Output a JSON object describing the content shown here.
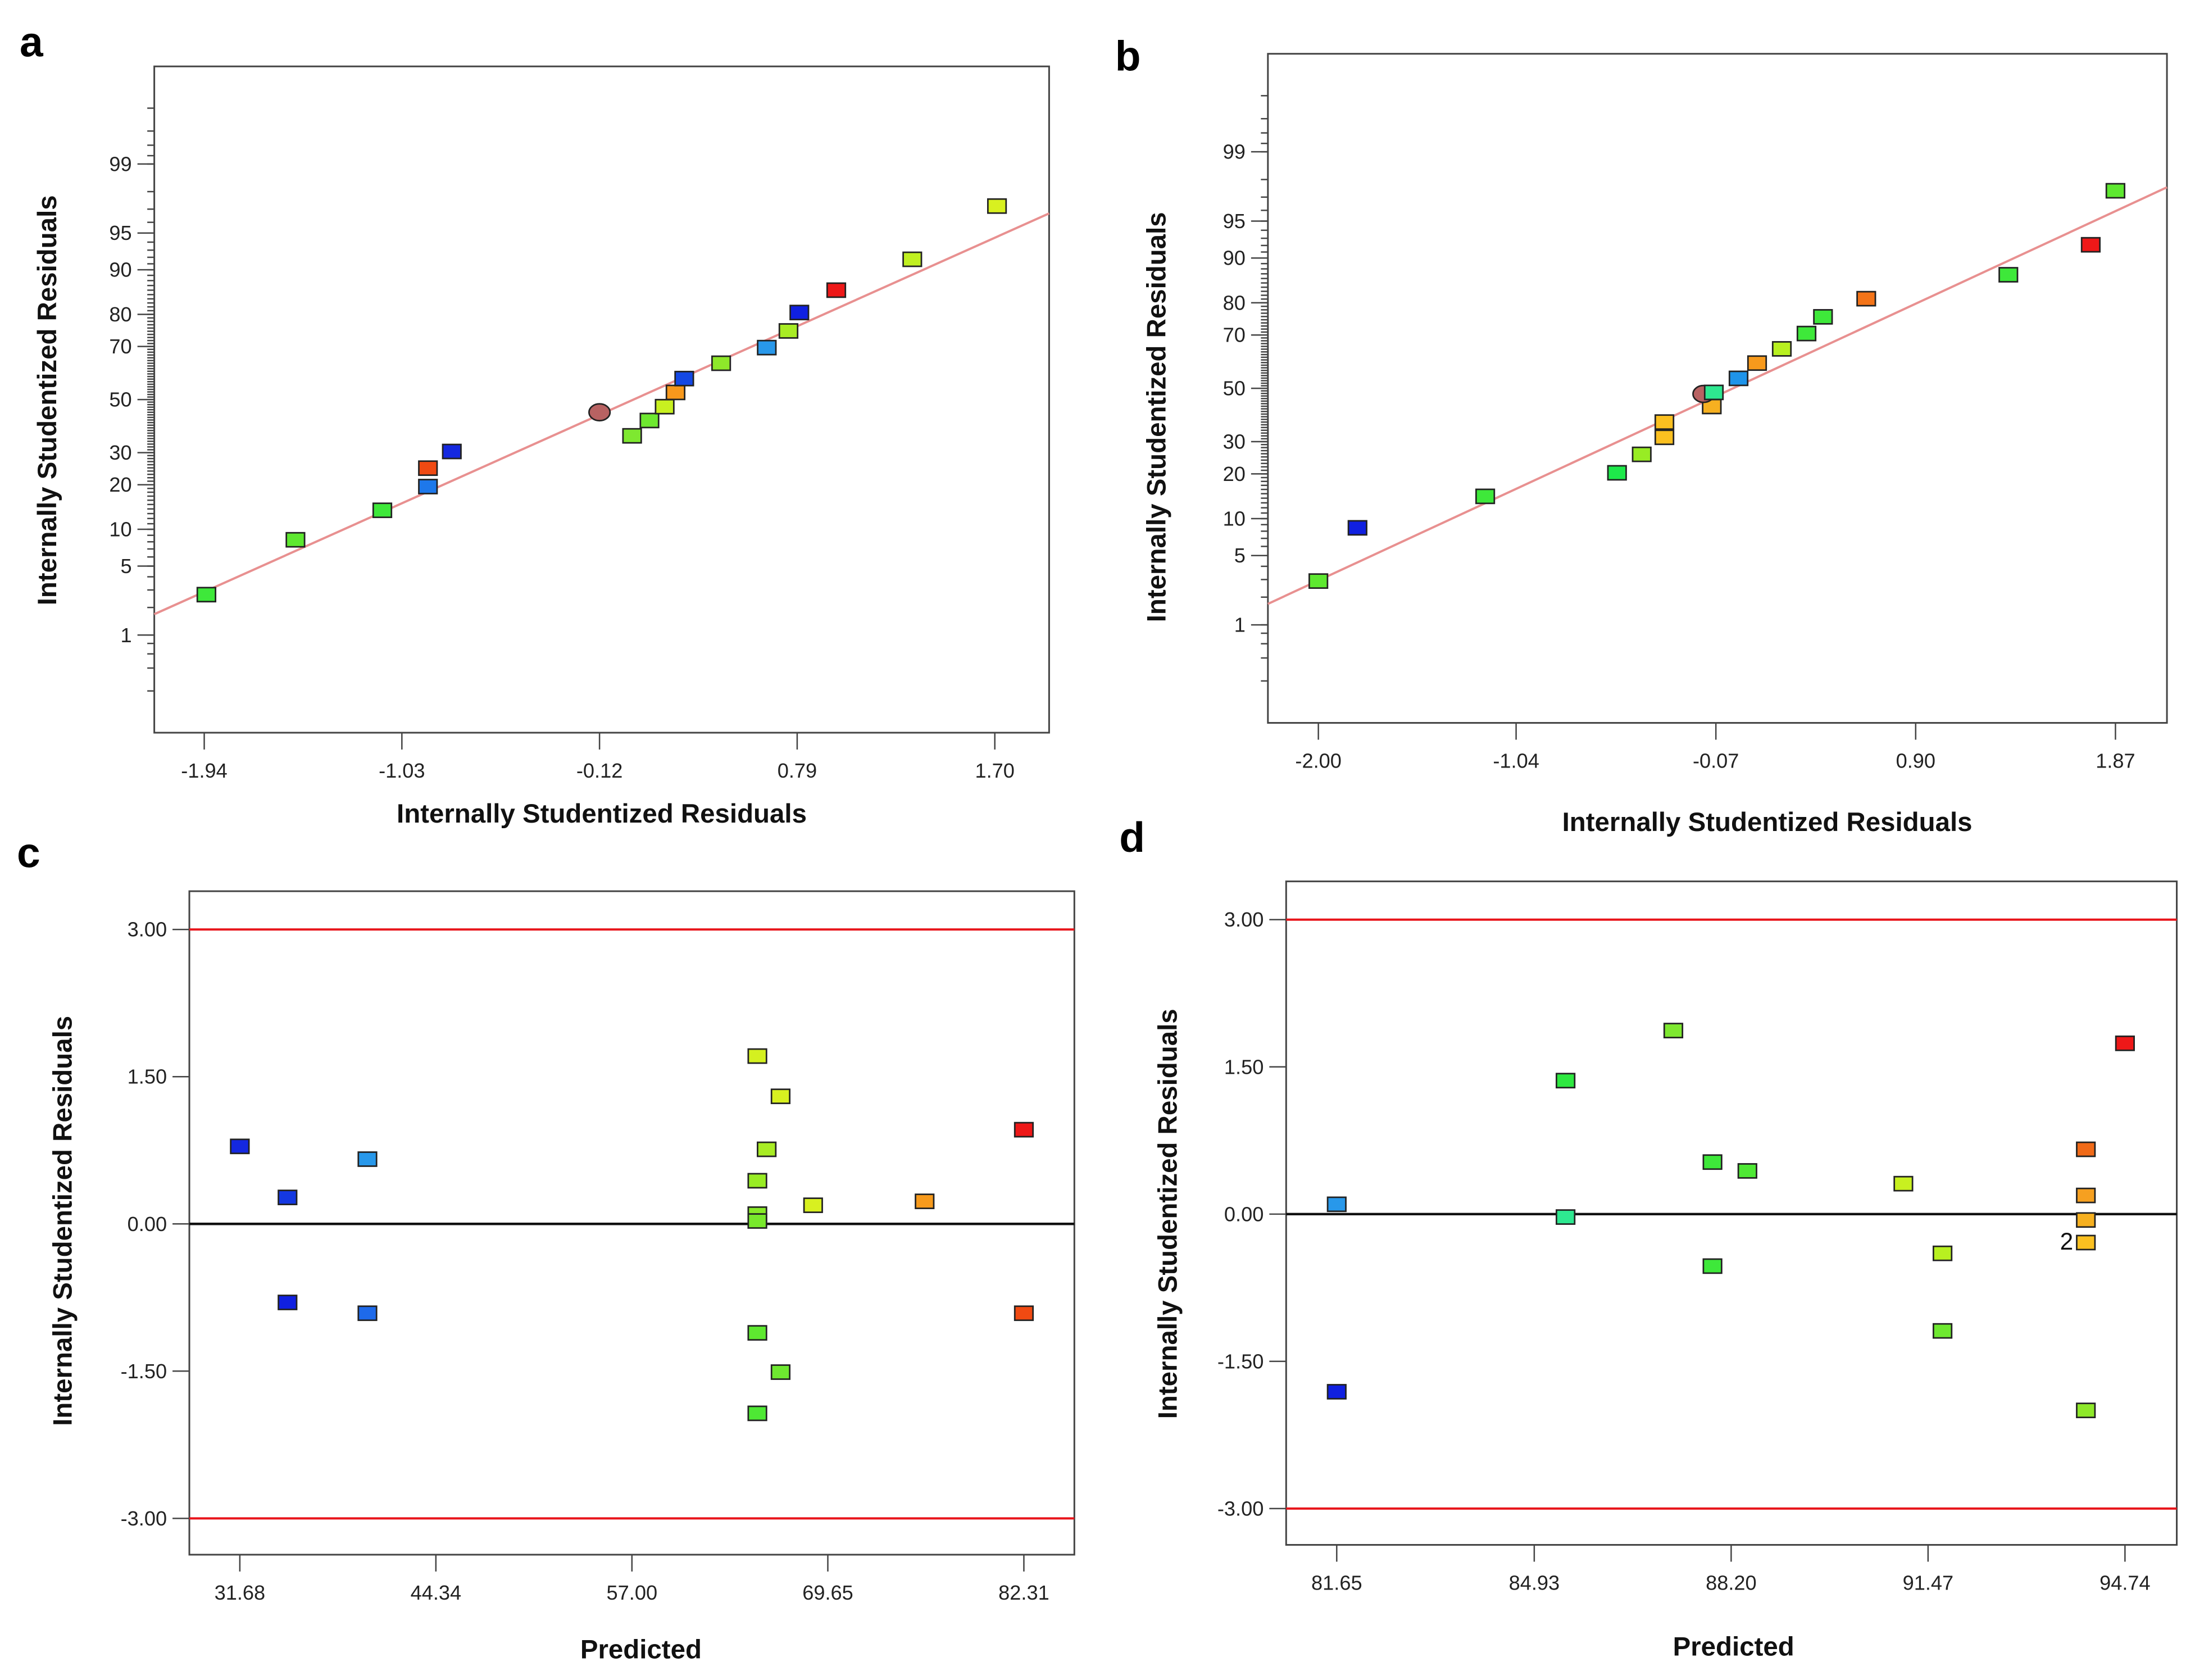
{
  "colors": {
    "fit_line": "#e89090",
    "limit_line": "#e8151b",
    "zero_line": "#111111"
  },
  "chart_data": [
    {
      "panel": "a",
      "type": "scatter",
      "subtype": "normal-probability",
      "title": "",
      "xlabel": "Internally Studentized  Residuals",
      "ylabel": "Internally Studentized  Residuals",
      "x_ticks": [
        -1.94,
        -1.03,
        -0.12,
        0.79,
        1.7
      ],
      "x_tick_labels": [
        "-1.94",
        "-1.03",
        "-0.12",
        "0.79",
        "1.70"
      ],
      "y_ticks": [
        1,
        5,
        10,
        20,
        30,
        50,
        70,
        80,
        90,
        95,
        99
      ],
      "y_tick_labels": [
        "1",
        "5",
        "10",
        "20",
        "30",
        "50",
        "70",
        "80",
        "90",
        "95",
        "99"
      ],
      "xlim": [
        -2.17,
        1.95
      ],
      "ylim_probability": [
        0.05,
        99.95
      ],
      "fit_line": {
        "x": [
          -2.17,
          1.95
        ],
        "y": [
          1.7,
          96.7
        ]
      },
      "points": [
        {
          "x": -1.93,
          "y": 2.7,
          "color": "#3ee83a",
          "shape": "square"
        },
        {
          "x": -1.52,
          "y": 8.3,
          "color": "#5ee830",
          "shape": "square"
        },
        {
          "x": -1.12,
          "y": 13.7,
          "color": "#3ee83a",
          "shape": "square"
        },
        {
          "x": -0.91,
          "y": 19.5,
          "color": "#1e78ea",
          "shape": "square"
        },
        {
          "x": -0.91,
          "y": 24.9,
          "color": "#f04a12",
          "shape": "square"
        },
        {
          "x": -0.8,
          "y": 30.4,
          "color": "#1428e0",
          "shape": "square"
        },
        {
          "x": -0.12,
          "y": 45.0,
          "color": "#b86262",
          "shape": "circle"
        },
        {
          "x": 0.03,
          "y": 36.0,
          "color": "#7ee830",
          "shape": "square"
        },
        {
          "x": 0.11,
          "y": 41.8,
          "color": "#6ee830",
          "shape": "square"
        },
        {
          "x": 0.18,
          "y": 47.2,
          "color": "#c8f020",
          "shape": "square"
        },
        {
          "x": 0.23,
          "y": 52.8,
          "color": "#f7981c",
          "shape": "square"
        },
        {
          "x": 0.27,
          "y": 58.2,
          "color": "#1448e4",
          "shape": "square"
        },
        {
          "x": 0.44,
          "y": 64.0,
          "color": "#8ee82a",
          "shape": "square"
        },
        {
          "x": 0.65,
          "y": 69.6,
          "color": "#2898ea",
          "shape": "square"
        },
        {
          "x": 0.75,
          "y": 75.1,
          "color": "#a8ec24",
          "shape": "square"
        },
        {
          "x": 0.8,
          "y": 80.5,
          "color": "#1020e0",
          "shape": "square"
        },
        {
          "x": 0.97,
          "y": 86.0,
          "color": "#ee1818",
          "shape": "square"
        },
        {
          "x": 1.32,
          "y": 91.7,
          "color": "#c0f020",
          "shape": "square"
        },
        {
          "x": 1.71,
          "y": 97.2,
          "color": "#d8f020",
          "shape": "square"
        }
      ]
    },
    {
      "panel": "b",
      "type": "scatter",
      "subtype": "normal-probability",
      "title": "",
      "xlabel": "Internally Studentized  Residuals",
      "ylabel": "Internally Studentized  Residuals",
      "x_ticks": [
        -2.0,
        -1.04,
        -0.07,
        0.9,
        1.87
      ],
      "x_tick_labels": [
        "-2.00",
        "-1.04",
        "-0.07",
        "0.90",
        "1.87"
      ],
      "y_ticks": [
        1,
        5,
        10,
        20,
        30,
        50,
        70,
        80,
        90,
        95,
        99
      ],
      "y_tick_labels": [
        "1",
        "5",
        "10",
        "20",
        "30",
        "50",
        "70",
        "80",
        "90",
        "95",
        "99"
      ],
      "xlim": [
        -2.245,
        2.12
      ],
      "ylim_probability": [
        0.05,
        99.95
      ],
      "fit_line": {
        "x": [
          -2.245,
          2.12
        ],
        "y": [
          1.7,
          97.6
        ]
      },
      "points": [
        {
          "x": -2.0,
          "y": 2.9,
          "color": "#5ee830",
          "shape": "square"
        },
        {
          "x": -1.81,
          "y": 8.5,
          "color": "#1020e0",
          "shape": "square"
        },
        {
          "x": -1.19,
          "y": 14.4,
          "color": "#3ee83a",
          "shape": "square"
        },
        {
          "x": -0.55,
          "y": 20.3,
          "color": "#1ee84a",
          "shape": "square"
        },
        {
          "x": -0.43,
          "y": 25.8,
          "color": "#98ec24",
          "shape": "square"
        },
        {
          "x": -0.32,
          "y": 31.5,
          "color": "#fbc020",
          "shape": "square"
        },
        {
          "x": -0.32,
          "y": 37.0,
          "color": "#fbc020",
          "shape": "square"
        },
        {
          "x": -0.09,
          "y": 42.9,
          "color": "#f6b020",
          "shape": "square"
        },
        {
          "x": -0.13,
          "y": 47.8,
          "color": "#b86262",
          "shape": "circle"
        },
        {
          "x": -0.08,
          "y": 48.4,
          "color": "#2ee890",
          "shape": "square"
        },
        {
          "x": 0.04,
          "y": 53.9,
          "color": "#1e94ea",
          "shape": "square"
        },
        {
          "x": 0.13,
          "y": 59.8,
          "color": "#f79a1c",
          "shape": "square"
        },
        {
          "x": 0.25,
          "y": 65.1,
          "color": "#b8f020",
          "shape": "square"
        },
        {
          "x": 0.37,
          "y": 70.5,
          "color": "#3ee83a",
          "shape": "square"
        },
        {
          "x": 0.45,
          "y": 75.9,
          "color": "#3ee83a",
          "shape": "square"
        },
        {
          "x": 0.66,
          "y": 81.1,
          "color": "#f47418",
          "shape": "square"
        },
        {
          "x": 1.35,
          "y": 86.8,
          "color": "#3ee83a",
          "shape": "square"
        },
        {
          "x": 1.75,
          "y": 92.1,
          "color": "#ee1818",
          "shape": "square"
        },
        {
          "x": 1.87,
          "y": 97.4,
          "color": "#5ee830",
          "shape": "square"
        }
      ]
    },
    {
      "panel": "c",
      "type": "scatter",
      "subtype": "residuals-vs-predicted",
      "title": "",
      "xlabel": "Predicted",
      "ylabel": "Internally Studentized  Residuals",
      "x_ticks": [
        31.68,
        44.34,
        57.0,
        69.65,
        82.31
      ],
      "x_tick_labels": [
        "31.68",
        "44.34",
        "57.00",
        "69.65",
        "82.31"
      ],
      "y_ticks": [
        -3.0,
        -1.5,
        0.0,
        1.5,
        3.0
      ],
      "y_tick_labels": [
        "-3.00",
        "-1.50",
        "0.00",
        "1.50",
        "3.00"
      ],
      "xlim": [
        28.42,
        85.57
      ],
      "ylim": [
        -3.37,
        3.39
      ],
      "limit_lines": [
        3.0,
        -3.0
      ],
      "zero_line": 0.0,
      "points": [
        {
          "x": 31.68,
          "y": 0.79,
          "color": "#1428e0"
        },
        {
          "x": 34.76,
          "y": 0.27,
          "color": "#1438e2"
        },
        {
          "x": 34.76,
          "y": -0.8,
          "color": "#1020e0"
        },
        {
          "x": 39.92,
          "y": 0.66,
          "color": "#2898ea"
        },
        {
          "x": 39.92,
          "y": -0.91,
          "color": "#1e6aea"
        },
        {
          "x": 65.1,
          "y": 1.71,
          "color": "#d4f020"
        },
        {
          "x": 66.6,
          "y": 1.3,
          "color": "#d8f020"
        },
        {
          "x": 65.7,
          "y": 0.76,
          "color": "#a8ec24"
        },
        {
          "x": 65.1,
          "y": 0.44,
          "color": "#98ec24"
        },
        {
          "x": 65.1,
          "y": 0.1,
          "color": "#88ea28"
        },
        {
          "x": 65.1,
          "y": 0.03,
          "color": "#78e82c"
        },
        {
          "x": 68.7,
          "y": 0.19,
          "color": "#d8f020"
        },
        {
          "x": 75.9,
          "y": 0.23,
          "color": "#f79a1c"
        },
        {
          "x": 82.31,
          "y": 0.96,
          "color": "#ee1818"
        },
        {
          "x": 82.31,
          "y": -0.91,
          "color": "#f04a12"
        },
        {
          "x": 65.1,
          "y": -1.11,
          "color": "#5ee830"
        },
        {
          "x": 66.6,
          "y": -1.51,
          "color": "#6ee830"
        },
        {
          "x": 65.1,
          "y": -1.93,
          "color": "#4ee834"
        }
      ]
    },
    {
      "panel": "d",
      "type": "scatter",
      "subtype": "residuals-vs-predicted",
      "title": "",
      "xlabel": "Predicted",
      "ylabel": "Internally Studentized  Residuals",
      "x_ticks": [
        81.65,
        84.93,
        88.2,
        91.47,
        94.74
      ],
      "x_tick_labels": [
        "81.65",
        "84.93",
        "88.20",
        "91.47",
        "94.74"
      ],
      "y_ticks": [
        -3.0,
        -1.5,
        0.0,
        1.5,
        3.0
      ],
      "y_tick_labels": [
        "-3.00",
        "-1.50",
        "0.00",
        "1.50",
        "3.00"
      ],
      "xlim": [
        80.81,
        95.6
      ],
      "ylim": [
        -3.37,
        3.39
      ],
      "limit_lines": [
        3.0,
        -3.0
      ],
      "zero_line": 0.0,
      "annotations": [
        {
          "text": "2",
          "x": 94.09,
          "y": -0.29
        }
      ],
      "points": [
        {
          "x": 81.65,
          "y": 0.1,
          "color": "#2898ea"
        },
        {
          "x": 81.65,
          "y": -1.81,
          "color": "#1020e0"
        },
        {
          "x": 85.45,
          "y": 1.36,
          "color": "#2ee840"
        },
        {
          "x": 85.45,
          "y": -0.03,
          "color": "#2ee890"
        },
        {
          "x": 87.24,
          "y": 1.87,
          "color": "#7ee830"
        },
        {
          "x": 87.89,
          "y": 0.53,
          "color": "#3ee83a"
        },
        {
          "x": 88.47,
          "y": 0.44,
          "color": "#4ee834"
        },
        {
          "x": 87.89,
          "y": -0.53,
          "color": "#3ee83a"
        },
        {
          "x": 91.06,
          "y": 0.31,
          "color": "#c8f020"
        },
        {
          "x": 91.71,
          "y": -0.4,
          "color": "#b8f020"
        },
        {
          "x": 91.71,
          "y": -1.19,
          "color": "#6ee830"
        },
        {
          "x": 94.09,
          "y": 0.66,
          "color": "#f06a18"
        },
        {
          "x": 94.09,
          "y": 0.19,
          "color": "#f6a020"
        },
        {
          "x": 94.09,
          "y": -0.06,
          "color": "#f6b020"
        },
        {
          "x": 94.09,
          "y": -0.29,
          "color": "#fbc020"
        },
        {
          "x": 94.09,
          "y": -2.0,
          "color": "#8ee82a"
        },
        {
          "x": 94.74,
          "y": 1.74,
          "color": "#ee1818"
        }
      ]
    }
  ],
  "panels": {
    "a": "a",
    "b": "b",
    "c": "c",
    "d": "d"
  }
}
